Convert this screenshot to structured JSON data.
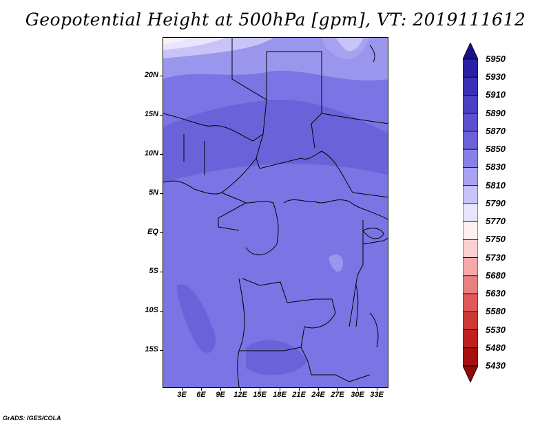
{
  "title": "Geopotential Height at 500hPa [gpm], VT: 2019111612",
  "map": {
    "lat_labels": [
      "20N",
      "15N",
      "10N",
      "5N",
      "EQ",
      "5S",
      "10S",
      "15S"
    ],
    "lon_labels": [
      "3E",
      "6E",
      "9E",
      "12E",
      "15E",
      "18E",
      "21E",
      "24E",
      "27E",
      "30E",
      "33E"
    ]
  },
  "colorbar": {
    "labels": [
      "5950",
      "5930",
      "5910",
      "5890",
      "5870",
      "5850",
      "5830",
      "5810",
      "5790",
      "5770",
      "5750",
      "5730",
      "5680",
      "5630",
      "5580",
      "5530",
      "5480",
      "5430"
    ],
    "colors": [
      "#1a0f8c",
      "#2a20a8",
      "#3a30b8",
      "#4a40c4",
      "#5a50d0",
      "#6a62d8",
      "#8880e6",
      "#a8a2f0",
      "#c8c4f8",
      "#e8e6ff",
      "#fff0f0",
      "#fcd0d0",
      "#f4a8a8",
      "#e88080",
      "#e05858",
      "#d03838",
      "#c02020",
      "#a81010",
      "#900808"
    ]
  },
  "footer": "GrADS: IGES/COLA"
}
